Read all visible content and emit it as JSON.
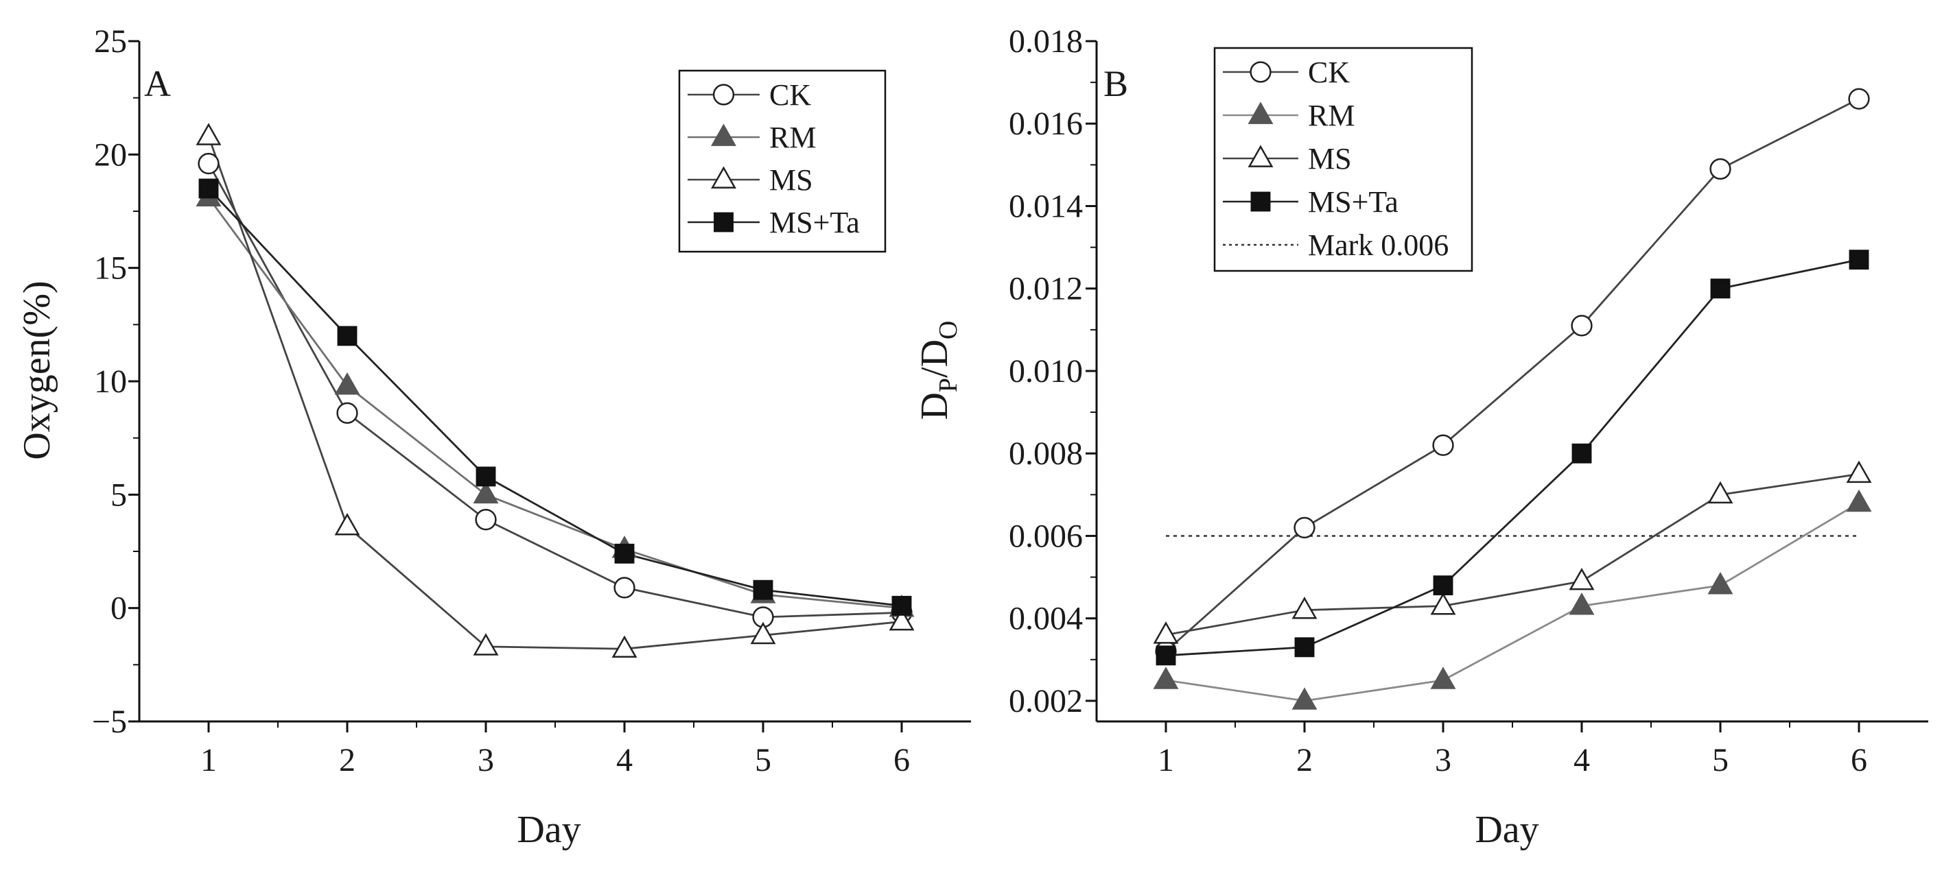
{
  "chart_data": [
    {
      "panel": "A",
      "type": "line",
      "xlabel": "Day",
      "ylabel": "Oxygen(%)",
      "x": [
        1,
        2,
        3,
        4,
        5,
        6
      ],
      "xlim": [
        0.5,
        6.5
      ],
      "ylim": [
        -5,
        25
      ],
      "xticks": [
        1,
        2,
        3,
        4,
        5,
        6
      ],
      "yticks": [
        -5,
        0,
        5,
        10,
        15,
        20,
        25
      ],
      "ytick_labels": [
        "−5",
        "0",
        "5",
        "10",
        "15",
        "20",
        "25"
      ],
      "legend_position": "top-right",
      "series": [
        {
          "name": "CK",
          "marker": "circle-open",
          "line_color": "#444444",
          "values": [
            19.6,
            8.6,
            3.9,
            0.9,
            -0.4,
            -0.2
          ]
        },
        {
          "name": "RM",
          "marker": "triangle-filled",
          "line_color": "#707070",
          "values": [
            18.1,
            9.8,
            5.0,
            2.6,
            0.6,
            0.0
          ]
        },
        {
          "name": "MS",
          "marker": "triangle-open",
          "line_color": "#444444",
          "values": [
            20.8,
            3.6,
            -1.7,
            -1.8,
            -1.2,
            -0.6
          ]
        },
        {
          "name": "MS+Ta",
          "marker": "square-filled",
          "line_color": "#222222",
          "values": [
            18.5,
            12.0,
            5.8,
            2.4,
            0.8,
            0.1
          ]
        }
      ]
    },
    {
      "panel": "B",
      "type": "line",
      "xlabel": "Day",
      "ylabel_main": "D",
      "ylabel_sub1": "P",
      "ylabel_slash": "/D",
      "ylabel_sub2": "O",
      "x": [
        1,
        2,
        3,
        4,
        5,
        6
      ],
      "xlim": [
        0.5,
        6.5
      ],
      "ylim": [
        0.0015,
        0.018
      ],
      "xticks": [
        1,
        2,
        3,
        4,
        5,
        6
      ],
      "yticks": [
        0.002,
        0.004,
        0.006,
        0.008,
        0.01,
        0.012,
        0.014,
        0.016,
        0.018
      ],
      "ytick_labels": [
        "0.002",
        "0.004",
        "0.006",
        "0.008",
        "0.010",
        "0.012",
        "0.014",
        "0.016",
        "0.018"
      ],
      "legend_position": "top-left",
      "reference_line": {
        "name": "Mark 0.006",
        "value": 0.006,
        "x_range": [
          1,
          6
        ],
        "style": "dotted"
      },
      "series": [
        {
          "name": "CK",
          "marker": "circle-open",
          "line_color": "#444444",
          "values": [
            0.0032,
            0.0062,
            0.0082,
            0.0111,
            0.0149,
            0.0166
          ]
        },
        {
          "name": "RM",
          "marker": "triangle-filled",
          "line_color": "#8a8a8a",
          "values": [
            0.0025,
            0.002,
            0.0025,
            0.0043,
            0.0048,
            0.0068
          ]
        },
        {
          "name": "MS",
          "marker": "triangle-open",
          "line_color": "#444444",
          "values": [
            0.0036,
            0.0042,
            0.0043,
            0.0049,
            0.007,
            0.0075
          ]
        },
        {
          "name": "MS+Ta",
          "marker": "square-filled",
          "line_color": "#222222",
          "values": [
            0.0031,
            0.0033,
            0.0048,
            0.008,
            0.012,
            0.0127
          ]
        }
      ]
    }
  ]
}
